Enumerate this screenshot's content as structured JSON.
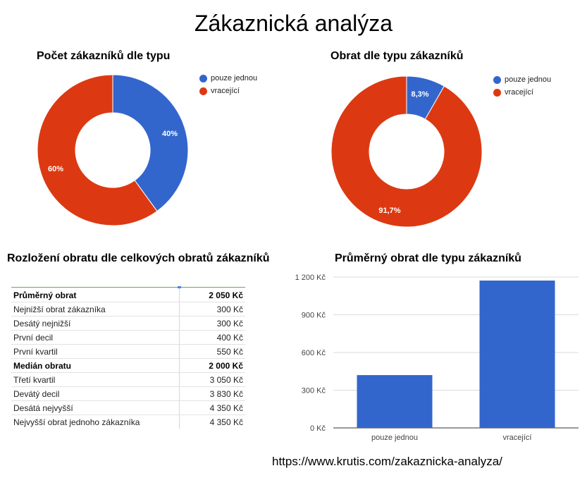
{
  "title": "Zákaznická analýza",
  "colors": {
    "blue": "#3366cc",
    "red": "#dc3912",
    "grid": "#d9d9d9",
    "table_top": "#6aa84f"
  },
  "chart_data": [
    {
      "type": "pie",
      "donut": true,
      "title": "Počet zákazníků dle typu",
      "categories": [
        "pouze jednou",
        "vracející"
      ],
      "values": [
        40,
        60
      ],
      "labels": [
        "40%",
        "60%"
      ],
      "legend_position": "right"
    },
    {
      "type": "pie",
      "donut": true,
      "title": "Obrat dle typu zákazníků",
      "categories": [
        "pouze jednou",
        "vracející"
      ],
      "values": [
        8.3,
        91.7
      ],
      "labels": [
        "8,3%",
        "91,7%"
      ],
      "legend_position": "right"
    },
    {
      "type": "table",
      "title": "Rozložení obratu dle celkových obratů zákazníků",
      "rows": [
        {
          "label": "Průměrný obrat",
          "value": "2 050 Kč",
          "bold": true
        },
        {
          "label": "Nejnižší obrat zákazníka",
          "value": "300 Kč",
          "bold": false
        },
        {
          "label": "Desátý nejnižší",
          "value": "300 Kč",
          "bold": false
        },
        {
          "label": "První decil",
          "value": "400 Kč",
          "bold": false
        },
        {
          "label": "První kvartil",
          "value": "550 Kč",
          "bold": false
        },
        {
          "label": "Medián obratu",
          "value": "2 000 Kč",
          "bold": true
        },
        {
          "label": "Třetí kvartil",
          "value": "3 050 Kč",
          "bold": false
        },
        {
          "label": "Devátý decil",
          "value": "3 830 Kč",
          "bold": false
        },
        {
          "label": "Desátá nejvyšší",
          "value": "4 350 Kč",
          "bold": false
        },
        {
          "label": "Nejvyšší obrat jednoho zákazníka",
          "value": "4 350 Kč",
          "bold": false
        }
      ]
    },
    {
      "type": "bar",
      "title": "Průměrný obrat dle typu zákazníků",
      "categories": [
        "pouze jednou",
        "vracející"
      ],
      "values": [
        420,
        1172
      ],
      "xlabel": "",
      "ylabel": "",
      "ylim": [
        0,
        1200
      ],
      "yticks": [
        "0 Kč",
        "300 Kč",
        "600 Kč",
        "900 Kč",
        "1 200 Kč"
      ],
      "grid": true,
      "legend_position": "none"
    }
  ],
  "footer": {
    "url": "https://www.krutis.com/zakaznicka-analyza/"
  }
}
